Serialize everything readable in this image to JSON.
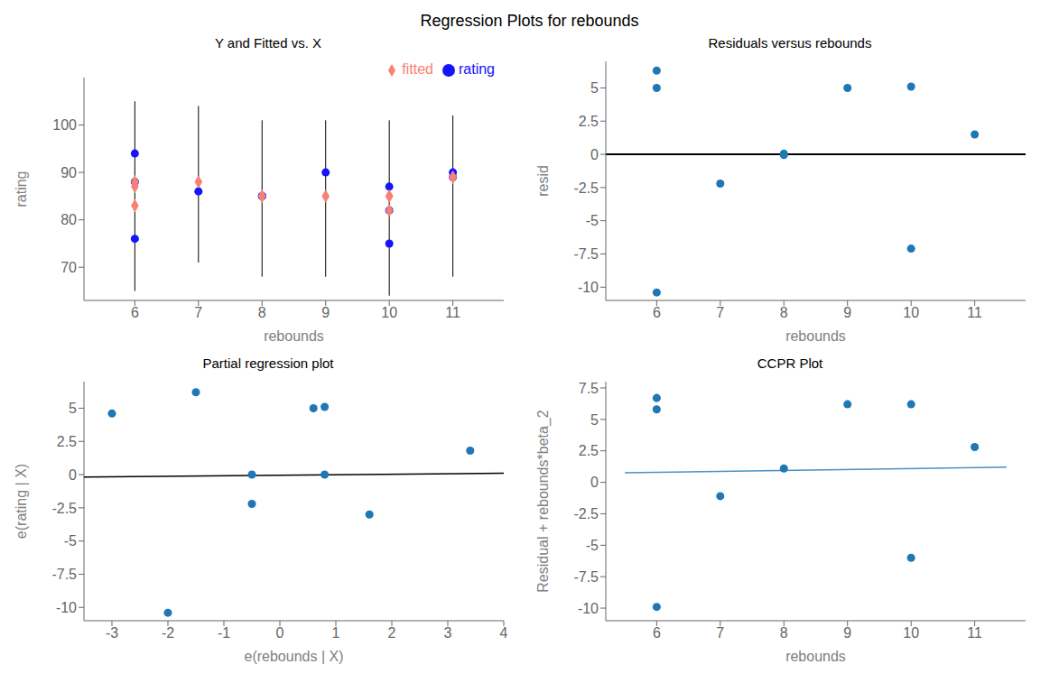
{
  "title": "Regression Plots for rebounds",
  "chart_data": [
    {
      "type": "scatter",
      "title": "Y and Fitted vs. X",
      "x_label": "rebounds",
      "y_label": "rating",
      "xlim": [
        5.2,
        11.8
      ],
      "xticks": [
        6,
        7,
        8,
        9,
        10,
        11
      ],
      "ylim": [
        63,
        110
      ],
      "yticks": [
        70,
        80,
        90,
        100
      ],
      "grid": false,
      "legend": "upper right",
      "series": [
        {
          "name": "rating",
          "type": "scatter",
          "marker": "circle",
          "color": "#1414ff",
          "x": [
            6,
            6,
            6,
            7,
            8,
            8,
            9,
            10,
            10,
            10,
            11,
            11
          ],
          "values": [
            94,
            88,
            76,
            86,
            85,
            85,
            90,
            87,
            75,
            82,
            90,
            89
          ]
        },
        {
          "name": "fitted",
          "type": "scatter",
          "marker": "diamond",
          "color": "#fa8072",
          "x": [
            6,
            6,
            6,
            7,
            8,
            8,
            9,
            10,
            10,
            10,
            11,
            11
          ],
          "values": [
            88,
            87,
            83,
            88,
            85,
            85,
            85,
            85,
            82,
            85,
            89,
            89
          ]
        }
      ],
      "ci": {
        "x": [
          6,
          7,
          8,
          9,
          10,
          11
        ],
        "low": [
          65,
          71,
          68,
          68,
          64,
          68
        ],
        "high": [
          105,
          104,
          101,
          101,
          101,
          102
        ],
        "color": "black"
      }
    },
    {
      "type": "scatter",
      "title": "Residuals versus rebounds",
      "x_label": "rebounds",
      "y_label": "resid",
      "xlim": [
        5.2,
        11.8
      ],
      "xticks": [
        6,
        7,
        8,
        9,
        10,
        11
      ],
      "ylim": [
        -11,
        7
      ],
      "yticks": [
        -10,
        -7.5,
        -5,
        -2.5,
        0,
        2.5,
        5
      ],
      "grid": false,
      "series": [
        {
          "type": "scatter",
          "color": "#1f77b4",
          "x": [
            6,
            6,
            6,
            7,
            8,
            8,
            9,
            10,
            10,
            11
          ],
          "values": [
            6.3,
            5.0,
            -10.4,
            -2.2,
            0.05,
            -0.05,
            5.0,
            5.1,
            -7.1,
            1.5
          ]
        }
      ],
      "hline": {
        "y": 0,
        "color": "black"
      }
    },
    {
      "type": "scatter",
      "title": "Partial regression plot",
      "x_label": "e(rebounds | X)",
      "y_label": "e(rating | X)",
      "xlim": [
        -3.5,
        4.0
      ],
      "xticks": [
        -3,
        -2,
        -1,
        0,
        1,
        2,
        3,
        4
      ],
      "ylim": [
        -11,
        7
      ],
      "yticks": [
        -10,
        -7.5,
        -5,
        -2.5,
        0,
        2.5,
        5
      ],
      "grid": false,
      "series": [
        {
          "type": "line",
          "color": "black",
          "x": [
            -3.5,
            4.0
          ],
          "values": [
            -0.18,
            0.1
          ]
        },
        {
          "type": "scatter",
          "color": "#1f77b4",
          "x": [
            -3.0,
            -2.0,
            -1.5,
            -0.5,
            -0.5,
            0.6,
            0.8,
            0.8,
            1.6,
            3.4
          ],
          "values": [
            4.6,
            -10.4,
            6.2,
            -2.2,
            0.0,
            5.0,
            5.1,
            0.0,
            -3.0,
            1.8
          ]
        }
      ]
    },
    {
      "type": "scatter",
      "title": "CCPR Plot",
      "x_label": "rebounds",
      "y_label": "Residual + rebounds*beta_2",
      "xlim": [
        5.2,
        11.8
      ],
      "xticks": [
        6,
        7,
        8,
        9,
        10,
        11
      ],
      "ylim": [
        -11,
        8
      ],
      "yticks": [
        -10,
        -7.5,
        -5,
        -2.5,
        0,
        2.5,
        5,
        7.5
      ],
      "grid": false,
      "series": [
        {
          "type": "line",
          "color": "#4a90c4",
          "x": [
            5.5,
            11.5
          ],
          "values": [
            0.75,
            1.2
          ]
        },
        {
          "type": "scatter",
          "color": "#1f77b4",
          "x": [
            6,
            6,
            6,
            7,
            8,
            9,
            10,
            10,
            11
          ],
          "values": [
            6.7,
            5.8,
            -9.9,
            -1.1,
            1.1,
            6.2,
            6.2,
            -6.0,
            2.8
          ]
        }
      ]
    }
  ]
}
